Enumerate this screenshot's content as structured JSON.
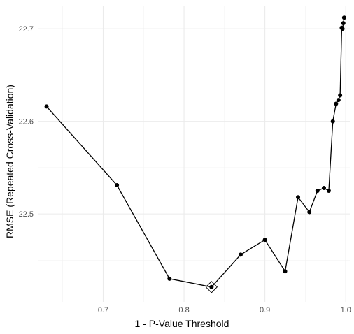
{
  "chart_data": {
    "type": "line",
    "title": "",
    "xlabel": "1 - P-Value Threshold",
    "ylabel": "RMSE (Repeated Cross-Validation)",
    "xlim": [
      0.62,
      1.005
    ],
    "ylim": [
      22.405,
      22.725
    ],
    "x_ticks": [
      0.7,
      0.8,
      0.9,
      1.0
    ],
    "x_tick_labels": [
      "0.7",
      "0.8",
      "0.9",
      "1.0"
    ],
    "y_ticks": [
      22.5,
      22.6,
      22.7
    ],
    "y_tick_labels": [
      "22.5",
      "22.6",
      "22.7"
    ],
    "grid": true,
    "series": [
      {
        "color": "#000000",
        "x": [
          0.63,
          0.717,
          0.782,
          0.834,
          0.87,
          0.9,
          0.925,
          0.941,
          0.955,
          0.965,
          0.973,
          0.979,
          0.984,
          0.988,
          0.991,
          0.993,
          0.995,
          0.996,
          0.997,
          0.998
        ],
        "y": [
          22.616,
          22.531,
          22.43,
          22.421,
          22.456,
          22.472,
          22.438,
          22.518,
          22.502,
          22.525,
          22.528,
          22.525,
          22.6,
          22.619,
          22.623,
          22.628,
          22.701,
          22.7,
          22.706,
          22.712
        ]
      }
    ],
    "best_point": {
      "x": 0.834,
      "y": 22.421,
      "marker": "diamond"
    }
  }
}
